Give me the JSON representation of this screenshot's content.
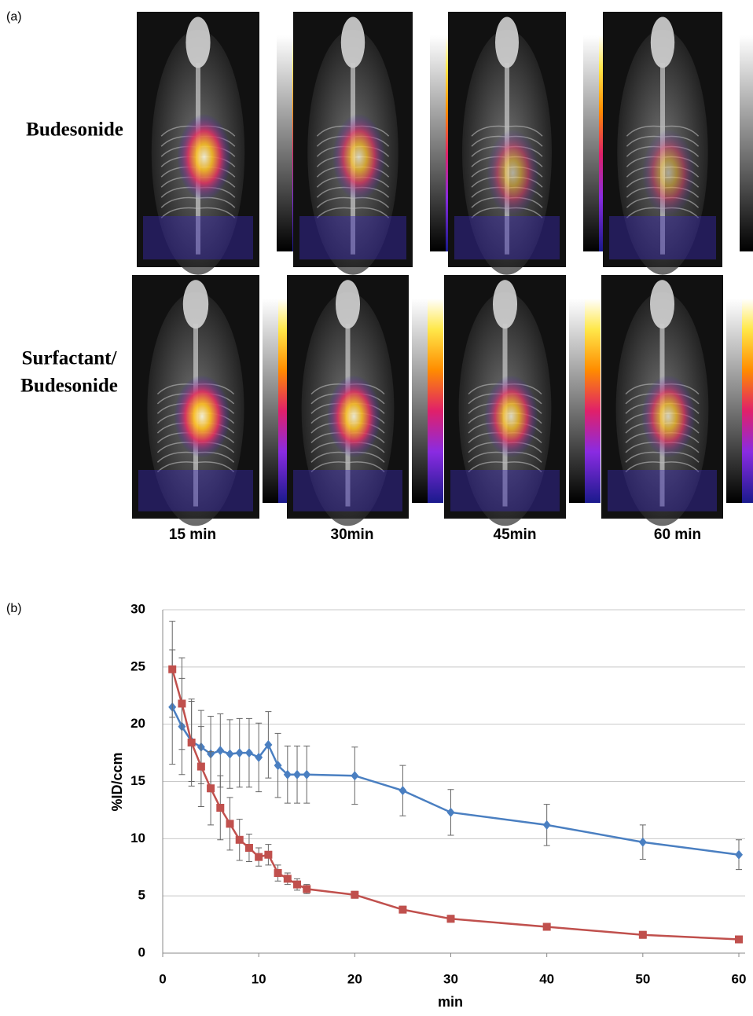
{
  "panel_a": {
    "label": "(a)",
    "row_labels": [
      [
        "Budesonide"
      ],
      [
        "Surfactant/",
        "Budesonide"
      ]
    ],
    "time_labels": [
      "15 min",
      "30min",
      "45min",
      "60 min"
    ]
  },
  "panel_b_label": "(b)",
  "chart_data": {
    "type": "line",
    "ylabel": "%ID/ccm",
    "xlabel": "min",
    "x": [
      1,
      2,
      3,
      4,
      5,
      6,
      7,
      8,
      9,
      10,
      11,
      12,
      13,
      14,
      15,
      20,
      25,
      30,
      40,
      50,
      60
    ],
    "series": [
      {
        "color": "#4a7fc1",
        "marker": "diamond",
        "values": [
          21.5,
          19.8,
          18.5,
          18.0,
          17.4,
          17.7,
          17.4,
          17.5,
          17.5,
          17.1,
          18.2,
          16.4,
          15.6,
          15.6,
          15.6,
          15.5,
          14.2,
          12.3,
          11.2,
          9.7,
          8.6
        ],
        "errors": [
          5.0,
          4.2,
          3.5,
          3.2,
          3.3,
          3.2,
          3.0,
          3.0,
          3.0,
          3.0,
          2.9,
          2.8,
          2.5,
          2.5,
          2.5,
          2.5,
          2.2,
          2.0,
          1.8,
          1.5,
          1.3
        ]
      },
      {
        "color": "#c0504d",
        "marker": "square",
        "values": [
          24.8,
          21.8,
          18.4,
          16.3,
          14.4,
          12.7,
          11.3,
          9.9,
          9.2,
          8.4,
          8.6,
          7.0,
          6.5,
          6.0,
          5.6,
          5.1,
          3.8,
          3.0,
          2.3,
          1.6,
          1.2
        ],
        "errors": [
          4.2,
          4.0,
          3.8,
          3.5,
          3.2,
          2.8,
          2.3,
          1.8,
          1.2,
          0.8,
          0.9,
          0.7,
          0.5,
          0.5,
          0.4,
          0.3,
          0.3,
          0.3,
          0.3,
          0.3,
          0.3
        ]
      }
    ],
    "xlim": [
      0,
      60
    ],
    "xticks": [
      0,
      10,
      20,
      30,
      40,
      50,
      60
    ],
    "ylim": [
      0,
      30
    ],
    "yticks": [
      0,
      5,
      10,
      15,
      20,
      25,
      30
    ],
    "grid": true
  }
}
